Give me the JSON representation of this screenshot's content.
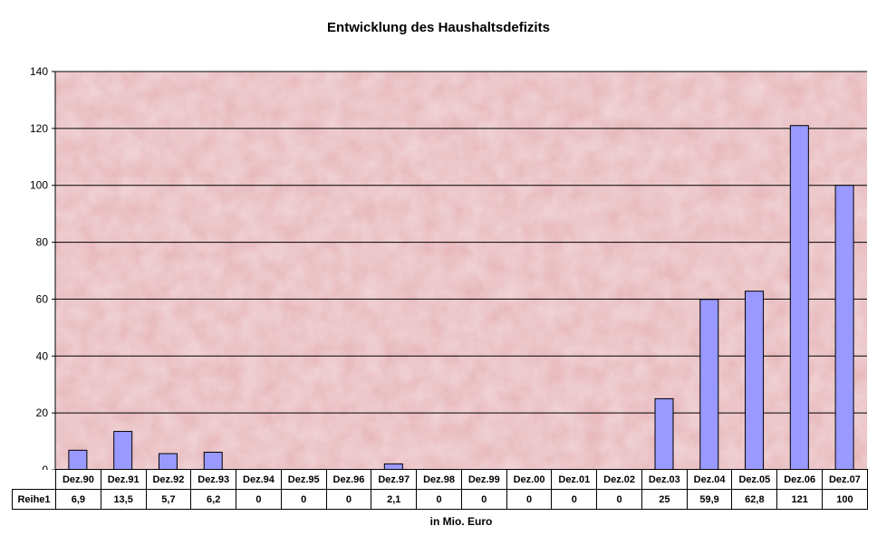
{
  "chart_data": {
    "type": "bar",
    "title": "Entwicklung des Haushaltsdefizits",
    "xlabel": "in Mio. Euro",
    "ylabel": "",
    "ylim": [
      0,
      140
    ],
    "yticks": [
      0,
      20,
      40,
      60,
      80,
      100,
      120,
      140
    ],
    "grid": true,
    "categories": [
      "Dez.90",
      "Dez.91",
      "Dez.92",
      "Dez.93",
      "Dez.94",
      "Dez.95",
      "Dez.96",
      "Dez.97",
      "Dez.98",
      "Dez.99",
      "Dez.00",
      "Dez.01",
      "Dez.02",
      "Dez.03",
      "Dez.04",
      "Dez.05",
      "Dez.06",
      "Dez.07"
    ],
    "series": [
      {
        "name": "Reihe1",
        "values": [
          6.9,
          13.5,
          5.7,
          6.2,
          0,
          0,
          0,
          2.1,
          0,
          0,
          0,
          0,
          0,
          25,
          59.9,
          62.8,
          121,
          100
        ],
        "value_labels": [
          "6,9",
          "13,5",
          "5,7",
          "6,2",
          "0",
          "0",
          "0",
          "2,1",
          "0",
          "0",
          "0",
          "0",
          "0",
          "25",
          "59,9",
          "62,8",
          "121",
          "100"
        ],
        "color": "#9999ff"
      }
    ],
    "plot_background": "#e6b4b8"
  }
}
